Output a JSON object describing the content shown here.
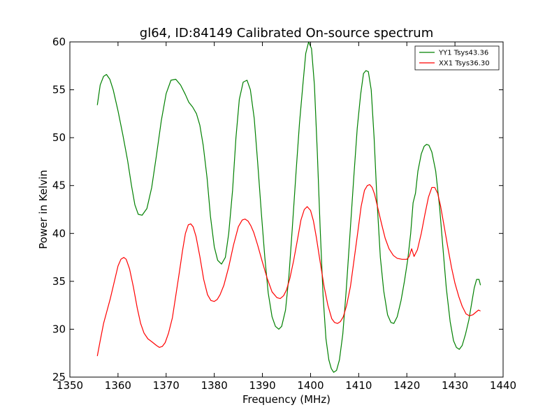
{
  "chart_data": {
    "type": "line",
    "title": "gl64, ID:84149 Calibrated On-source spectrum",
    "xlabel": "Frequency (MHz)",
    "ylabel": "Power in Kelvin",
    "xlim": [
      1350,
      1440
    ],
    "ylim": [
      25,
      60
    ],
    "xticks": [
      1350,
      1360,
      1370,
      1380,
      1390,
      1400,
      1410,
      1420,
      1430,
      1440
    ],
    "yticks": [
      25,
      30,
      35,
      40,
      45,
      50,
      55,
      60
    ],
    "grid": false,
    "legend_position": "top-right",
    "series": [
      {
        "name": "YY1 Tsys43.36",
        "color": "#008000",
        "x": [
          1355.7,
          1356.3,
          1357,
          1357.6,
          1358.3,
          1359,
          1360,
          1361,
          1362,
          1362.8,
          1363.5,
          1364.2,
          1365,
          1366,
          1367,
          1368,
          1369,
          1370,
          1371,
          1372,
          1373,
          1374,
          1374.7,
          1375.5,
          1376.3,
          1377,
          1377.7,
          1378.5,
          1379.2,
          1380,
          1380.7,
          1381.5,
          1382.3,
          1383,
          1383.8,
          1384.5,
          1385.2,
          1386,
          1386.8,
          1387.5,
          1388.3,
          1389,
          1389.8,
          1390.5,
          1391.2,
          1392,
          1392.7,
          1393.4,
          1394,
          1394.8,
          1395.5,
          1396.2,
          1397,
          1397.7,
          1398.4,
          1399,
          1399.6,
          1400.2,
          1400.8,
          1401.4,
          1402,
          1402.6,
          1403.2,
          1403.8,
          1404.3,
          1404.8,
          1405.4,
          1406,
          1406.7,
          1407.4,
          1408.2,
          1409,
          1409.7,
          1410.4,
          1411,
          1411.5,
          1412,
          1412.6,
          1413.2,
          1413.8,
          1414.5,
          1415.2,
          1416,
          1416.7,
          1417.3,
          1418,
          1418.8,
          1419.5,
          1420.2,
          1420.8,
          1421.3,
          1421.8,
          1422.3,
          1423,
          1423.6,
          1424.1,
          1424.6,
          1425.2,
          1426,
          1426.8,
          1427.5,
          1428.2,
          1429,
          1429.7,
          1430.3,
          1430.9,
          1431.5,
          1432.2,
          1432.9,
          1433.5,
          1434,
          1434.5,
          1435,
          1435.3
        ],
        "values": [
          53.4,
          55.5,
          56.4,
          56.6,
          56.1,
          55.0,
          52.8,
          50.3,
          47.6,
          45.0,
          43.0,
          42.0,
          41.9,
          42.6,
          44.8,
          48.2,
          51.8,
          54.6,
          56.0,
          56.1,
          55.5,
          54.5,
          53.7,
          53.2,
          52.5,
          51.3,
          49.2,
          45.8,
          41.8,
          38.6,
          37.2,
          36.8,
          37.5,
          40.0,
          44.5,
          50.0,
          54.0,
          55.8,
          56.0,
          55.0,
          52.0,
          47.5,
          42.0,
          37.5,
          33.8,
          31.3,
          30.3,
          30.0,
          30.3,
          32.0,
          35.5,
          40.5,
          46.5,
          51.5,
          55.5,
          58.8,
          60.0,
          59.3,
          55.5,
          48.5,
          40.5,
          33.5,
          29.0,
          26.8,
          25.9,
          25.5,
          25.7,
          26.8,
          29.5,
          34.0,
          40.0,
          46.0,
          51.0,
          54.5,
          56.7,
          57.0,
          56.9,
          55.0,
          50.0,
          43.5,
          37.5,
          34.0,
          31.5,
          30.7,
          30.6,
          31.3,
          33.0,
          35.0,
          37.3,
          40.0,
          43.2,
          44.2,
          46.5,
          48.3,
          49.1,
          49.3,
          49.2,
          48.5,
          46.5,
          42.8,
          38.5,
          34.3,
          30.8,
          28.8,
          28.1,
          27.9,
          28.3,
          29.5,
          31.0,
          32.8,
          34.3,
          35.2,
          35.2,
          34.6
        ]
      },
      {
        "name": "XX1 Tsys36.30",
        "color": "#ff0000",
        "x": [
          1355.7,
          1356.3,
          1357,
          1357.7,
          1358.4,
          1359.2,
          1360,
          1360.6,
          1361.2,
          1361.7,
          1362.4,
          1363.2,
          1364,
          1364.7,
          1365.4,
          1366.2,
          1367,
          1368,
          1368.6,
          1369.2,
          1369.8,
          1370.5,
          1371.3,
          1372,
          1372.7,
          1373.4,
          1374,
          1374.6,
          1375.1,
          1375.6,
          1376.2,
          1377,
          1377.8,
          1378.6,
          1379.3,
          1380,
          1380.6,
          1381.2,
          1382,
          1383,
          1384,
          1385,
          1385.8,
          1386.4,
          1387,
          1387.6,
          1388.2,
          1389,
          1390,
          1391,
          1392,
          1393,
          1393.7,
          1394.4,
          1395,
          1395.7,
          1396.5,
          1397.3,
          1398,
          1398.7,
          1399.3,
          1400,
          1400.6,
          1401.2,
          1402,
          1402.8,
          1403.6,
          1404.4,
          1405,
          1405.6,
          1406.2,
          1406.8,
          1407.5,
          1408.3,
          1409,
          1409.8,
          1410.5,
          1411.2,
          1411.8,
          1412.3,
          1412.8,
          1413.3,
          1414,
          1414.8,
          1415.5,
          1416.3,
          1417.2,
          1418,
          1419,
          1420,
          1420.5,
          1421,
          1421.5,
          1422.2,
          1423,
          1423.8,
          1424.5,
          1425.2,
          1425.8,
          1426.4,
          1427,
          1427.7,
          1428.5,
          1429.3,
          1430,
          1430.8,
          1431.5,
          1432.3,
          1433,
          1433.7,
          1434.4,
          1434.9,
          1435.3
        ],
        "values": [
          27.2,
          28.8,
          30.6,
          31.9,
          33.2,
          34.9,
          36.6,
          37.3,
          37.5,
          37.3,
          36.3,
          34.4,
          32.2,
          30.6,
          29.6,
          29.0,
          28.7,
          28.3,
          28.1,
          28.2,
          28.6,
          29.6,
          31.2,
          33.5,
          35.8,
          38.2,
          40.0,
          40.9,
          41.0,
          40.7,
          39.7,
          37.6,
          35.2,
          33.6,
          33.0,
          32.9,
          33.1,
          33.6,
          34.6,
          36.5,
          38.8,
          40.7,
          41.4,
          41.5,
          41.3,
          40.8,
          40.1,
          38.8,
          37.0,
          35.3,
          33.9,
          33.3,
          33.2,
          33.5,
          34.1,
          35.3,
          37.2,
          39.4,
          41.4,
          42.5,
          42.8,
          42.4,
          41.3,
          39.6,
          37.0,
          34.5,
          32.5,
          31.1,
          30.7,
          30.6,
          30.8,
          31.3,
          32.5,
          34.5,
          37.1,
          40.1,
          42.8,
          44.5,
          45.0,
          45.1,
          44.8,
          44.1,
          42.6,
          40.9,
          39.5,
          38.4,
          37.7,
          37.4,
          37.3,
          37.3,
          37.6,
          38.4,
          37.6,
          38.3,
          40.0,
          42.1,
          43.8,
          44.8,
          44.8,
          44.2,
          42.9,
          40.9,
          38.6,
          36.4,
          34.8,
          33.4,
          32.4,
          31.6,
          31.4,
          31.5,
          31.8,
          32.0,
          31.9
        ]
      }
    ]
  }
}
